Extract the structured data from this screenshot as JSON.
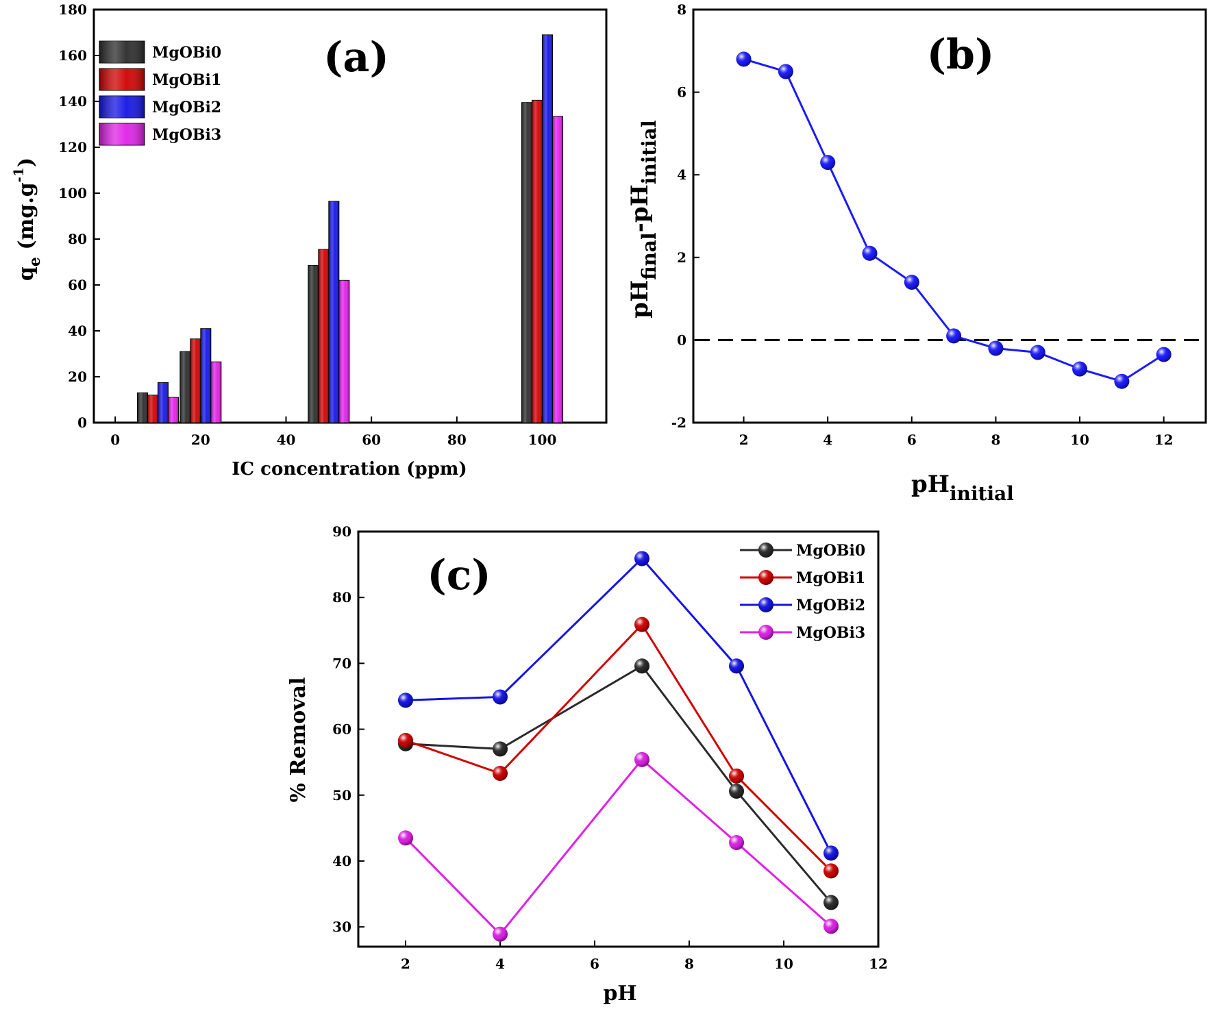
{
  "colors": {
    "MgOBi0": "#2b2b2b",
    "MgOBi1": "#d10000",
    "MgOBi2": "#1414e6",
    "MgOBi3": "#e020e8",
    "pzc_line": "#1a1aff"
  },
  "chart_data": [
    {
      "type": "bar",
      "panel_label": "(a)",
      "title": "",
      "xlabel": "IC concentration (ppm)",
      "ylabel_main": "q",
      "ylabel_sub": "e",
      "ylabel_unit": " (mg.g",
      "ylabel_sup": "-1",
      "ylabel_close": ")",
      "x": [
        10,
        20,
        50,
        100
      ],
      "xlim": [
        -5,
        115
      ],
      "ylim": [
        0,
        180
      ],
      "xticks": [
        0,
        20,
        40,
        60,
        80,
        100
      ],
      "yticks": [
        0,
        20,
        40,
        60,
        80,
        100,
        120,
        140,
        160,
        180
      ],
      "legend_position": "top-left",
      "grid": false,
      "series": [
        {
          "name": "MgOBi0",
          "values": [
            13,
            31,
            68.5,
            139.5
          ]
        },
        {
          "name": "MgOBi1",
          "values": [
            12,
            36.5,
            75.5,
            140.5
          ]
        },
        {
          "name": "MgOBi2",
          "values": [
            17.5,
            41,
            96.5,
            169
          ]
        },
        {
          "name": "MgOBi3",
          "values": [
            11,
            26.5,
            62,
            133.5
          ]
        }
      ]
    },
    {
      "type": "line",
      "panel_label": "(b)",
      "title": "",
      "xlabel_main": "pH",
      "xlabel_sub": "initial",
      "ylabel_parts": [
        "pH",
        "final",
        "-pH",
        "initial"
      ],
      "xlim": [
        0.8,
        13
      ],
      "ylim": [
        -2,
        8
      ],
      "xticks": [
        2,
        4,
        6,
        8,
        10,
        12
      ],
      "yticks": [
        -2,
        0,
        2,
        4,
        6,
        8
      ],
      "reference_line_y": 0,
      "grid": false,
      "series": [
        {
          "x": [
            2,
            3,
            4,
            5,
            6,
            7,
            8,
            9,
            10,
            11,
            12
          ],
          "y": [
            6.8,
            6.5,
            4.3,
            2.1,
            1.4,
            0.1,
            -0.2,
            -0.3,
            -0.7,
            -1.0,
            -0.35
          ]
        }
      ]
    },
    {
      "type": "line",
      "panel_label": "(c)",
      "title": "",
      "xlabel": "pH",
      "ylabel": "% Removal",
      "xlim": [
        1,
        12
      ],
      "ylim": [
        27,
        90
      ],
      "xticks": [
        2,
        4,
        6,
        8,
        10,
        12
      ],
      "yticks": [
        30,
        40,
        50,
        60,
        70,
        80,
        90
      ],
      "legend_position": "top-right",
      "grid": false,
      "x": [
        2,
        4,
        7,
        9,
        11
      ],
      "series": [
        {
          "name": "MgOBi0",
          "values": [
            57.8,
            57,
            69.6,
            50.6,
            33.7
          ]
        },
        {
          "name": "MgOBi1",
          "values": [
            58.3,
            53.3,
            75.9,
            52.9,
            38.5
          ]
        },
        {
          "name": "MgOBi2",
          "values": [
            64.4,
            64.9,
            85.9,
            69.6,
            41.2
          ]
        },
        {
          "name": "MgOBi3",
          "values": [
            43.5,
            28.9,
            55.4,
            42.8,
            30.1
          ]
        }
      ]
    }
  ]
}
